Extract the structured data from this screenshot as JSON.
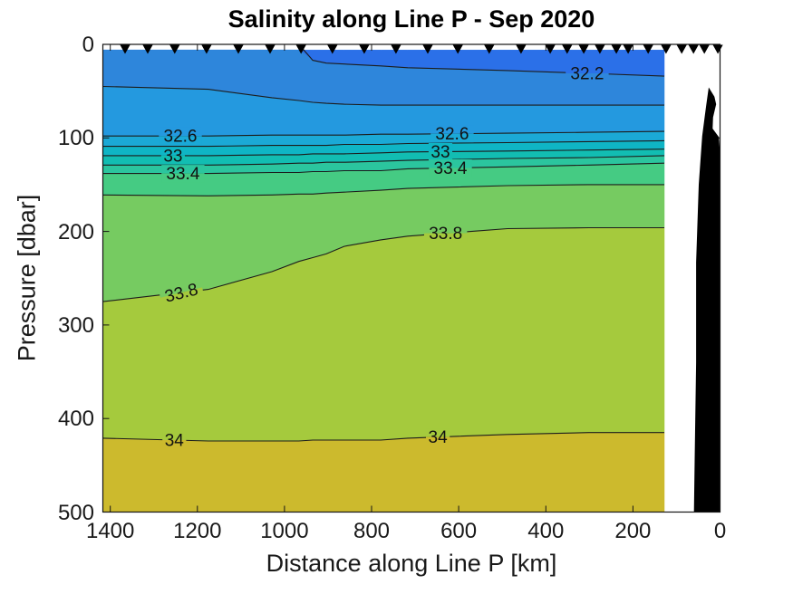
{
  "chart_data": {
    "type": "filled_contour_section",
    "title": "Salinity along Line P - Sep 2020",
    "xlabel": "Distance along Line P [km]",
    "ylabel": "Pressure [dbar]",
    "x_ticks": [
      1400,
      1200,
      1000,
      800,
      600,
      400,
      200,
      0
    ],
    "y_ticks": [
      0,
      100,
      200,
      300,
      400,
      500
    ],
    "xlim": [
      1417,
      0
    ],
    "ylim": [
      0,
      500
    ],
    "x_axis_reversed": true,
    "y_axis_downward": true,
    "grid": false,
    "data_x_extent_km": [
      1417,
      128
    ],
    "surface_depth_dbar": 6,
    "x_samples_km": [
      1417,
      1175,
      1029,
      967,
      935,
      904,
      863,
      779,
      717,
      488,
      301,
      128
    ],
    "bands": [
      {
        "range": "< 32.2",
        "color": "#2B70E8"
      },
      {
        "range": "32.2 - 32.4",
        "color": "#2E86DB"
      },
      {
        "range": "32.4 - 32.6",
        "color": "#2499DF"
      },
      {
        "range": "32.6 - 32.8",
        "color": "#1BA9D6"
      },
      {
        "range": "32.8 - 33.0",
        "color": "#0FB5C5"
      },
      {
        "range": "33.0 - 33.2",
        "color": "#12BDB2"
      },
      {
        "range": "33.2 - 33.4",
        "color": "#2BC59E"
      },
      {
        "range": "33.4 - 33.6",
        "color": "#45CB83"
      },
      {
        "range": "33.6 - 33.8",
        "color": "#76CB61"
      },
      {
        "range": "33.8 - 34.0",
        "color": "#A5CA3D"
      },
      {
        "range": "> 34.0",
        "color": "#CCBA2D"
      }
    ],
    "contours": [
      {
        "value": 32.2,
        "depths": [
          6,
          6,
          6,
          6,
          17,
          20,
          21,
          23,
          25,
          28,
          31,
          34
        ],
        "line": [
          [
            967,
            0
          ],
          [
            935,
            17
          ],
          [
            904,
            20
          ],
          [
            863,
            21
          ],
          [
            779,
            23
          ],
          [
            717,
            25
          ],
          [
            488,
            28
          ],
          [
            301,
            31
          ],
          [
            128,
            34
          ]
        ]
      },
      {
        "value": 32.4,
        "depths": [
          45,
          48,
          57,
          60,
          62,
          63,
          64,
          65,
          65,
          65,
          65,
          65
        ]
      },
      {
        "value": 32.6,
        "depths": [
          98,
          98,
          97,
          97,
          97,
          97,
          97,
          96,
          96,
          95,
          94,
          93
        ]
      },
      {
        "value": 32.8,
        "depths": [
          109,
          109,
          108,
          108,
          108,
          108,
          107,
          107,
          106,
          105,
          104,
          103
        ]
      },
      {
        "value": 33.0,
        "depths": [
          119,
          119,
          118,
          118,
          117,
          117,
          117,
          116,
          115,
          114,
          113,
          112
        ]
      },
      {
        "value": 33.2,
        "depths": [
          129,
          129,
          128,
          127,
          127,
          126,
          126,
          125,
          124,
          122,
          121,
          119
        ]
      },
      {
        "value": 33.4,
        "depths": [
          138,
          138,
          137,
          137,
          136,
          136,
          135,
          135,
          133,
          131,
          129,
          127
        ]
      },
      {
        "value": 33.6,
        "depths": [
          161,
          162,
          161,
          160,
          160,
          159,
          158,
          156,
          154,
          151,
          150,
          150
        ]
      },
      {
        "value": 33.8,
        "depths": [
          275,
          262,
          243,
          232,
          228,
          224,
          216,
          209,
          205,
          197,
          196,
          196
        ]
      },
      {
        "value": 34.0,
        "depths": [
          421,
          424,
          424,
          424,
          423,
          423,
          423,
          423,
          421,
          417,
          415,
          415
        ]
      }
    ],
    "contour_labels": [
      {
        "text": "32.2",
        "value": 32.2,
        "km": 305,
        "rot": 0
      },
      {
        "text": "32.6",
        "value": 32.6,
        "km": 1239,
        "rot": 0
      },
      {
        "text": "32.6",
        "value": 32.6,
        "km": 615,
        "rot": 0
      },
      {
        "text": "33",
        "value": 33.0,
        "km": 1256,
        "rot": 0
      },
      {
        "text": "33",
        "value": 33.0,
        "km": 642,
        "rot": 0
      },
      {
        "text": "33.4",
        "value": 33.4,
        "km": 1233,
        "rot": 0
      },
      {
        "text": "33.4",
        "value": 33.4,
        "km": 619,
        "rot": 0
      },
      {
        "text": "33.8",
        "value": 33.8,
        "km": 1237,
        "rot": -14
      },
      {
        "text": "33.8",
        "value": 33.8,
        "km": 630,
        "rot": 0
      },
      {
        "text": "34",
        "value": 34.0,
        "km": 1253,
        "rot": 0
      },
      {
        "text": "34",
        "value": 34.0,
        "km": 648,
        "rot": 0
      }
    ],
    "stations_km": [
      1366,
      1314,
      1252,
      1179,
      1106,
      1033,
      962,
      890,
      817,
      744,
      671,
      602,
      530,
      457,
      390,
      351,
      313,
      276,
      238,
      211,
      165,
      124,
      88,
      61,
      36,
      5
    ],
    "station_marker": "filled-down-triangle",
    "marker_color": "#000000",
    "bathymetry_color": "#000000",
    "bathymetry_outline_km_dbar": [
      [
        26,
        46
      ],
      [
        13,
        56
      ],
      [
        9,
        64
      ],
      [
        16,
        78
      ],
      [
        17,
        90
      ],
      [
        3,
        99
      ],
      [
        1,
        110
      ],
      [
        1,
        500
      ],
      [
        60,
        500
      ],
      [
        58,
        437
      ],
      [
        55,
        340
      ],
      [
        55,
        233
      ],
      [
        49,
        150
      ],
      [
        41,
        98
      ],
      [
        32,
        66
      ]
    ],
    "line_color": "#1c1c1c",
    "axis_color": "#151515"
  }
}
